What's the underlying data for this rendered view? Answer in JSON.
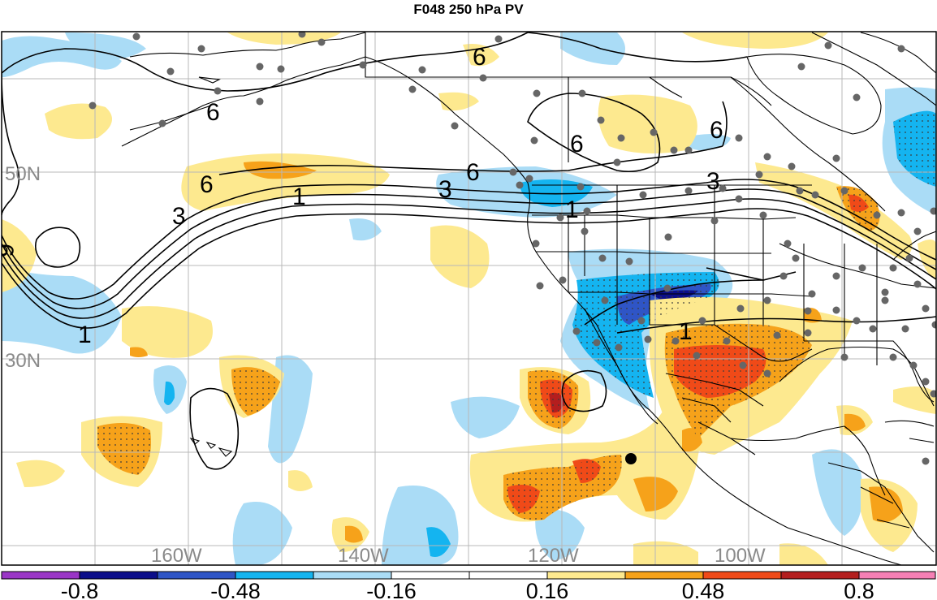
{
  "title": "F048 250 hPa PV",
  "colors": {
    "grid": "#b8b8b8",
    "coast": "#000000",
    "station": "#666666",
    "bins": [
      "#9a35c6",
      "#0c0e8a",
      "#2f55c6",
      "#14b4f0",
      "#aadcf6",
      "#ffffff",
      "#ffffff",
      "#fde98f",
      "#f6a21a",
      "#f04a18",
      "#b41e1e",
      "#f67fb4"
    ]
  },
  "lat_labels": [
    "50N",
    "30N"
  ],
  "lon_labels": [
    "160W",
    "140W",
    "120W",
    "100W"
  ],
  "contour_labels": [
    "6",
    "6",
    "6",
    "6",
    "6",
    "6",
    "3",
    "3",
    "3",
    "1",
    "1",
    "1",
    "1"
  ],
  "colorbar": {
    "ticks": [
      "-0.8",
      "-0.48",
      "-0.16",
      "0.16",
      "0.48",
      "0.8"
    ]
  },
  "markers": {
    "highlight": "large-black-dot"
  }
}
